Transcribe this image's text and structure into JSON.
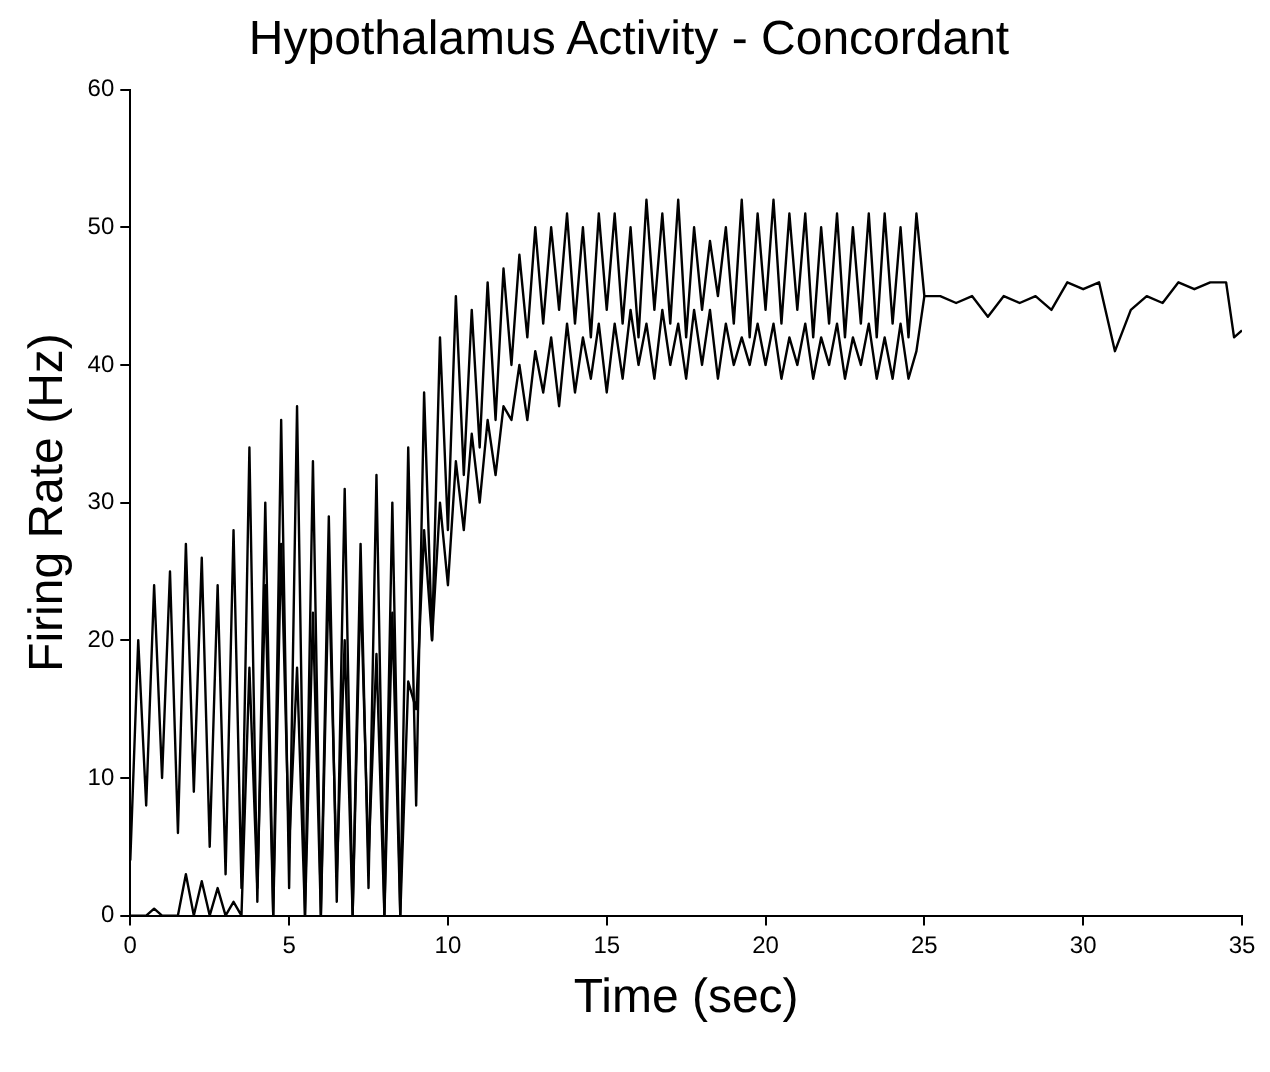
{
  "chart_data": {
    "type": "line",
    "title": "Hypothalamus Activity - Concordant",
    "xlabel": "Time (sec)",
    "ylabel": "Firing Rate (Hz)",
    "xlim": [
      0,
      35
    ],
    "xticks": [
      0,
      5,
      10,
      15,
      20,
      25,
      30,
      35
    ],
    "ylim": [
      0,
      60
    ],
    "yticks": [
      0,
      10,
      20,
      30,
      40,
      50,
      60
    ],
    "grid": false,
    "legend": false,
    "marker": "none",
    "line_style": "solid",
    "series": [
      {
        "color": "#000000",
        "x": [
          0,
          0.25,
          0.5,
          0.75,
          1,
          1.25,
          1.5,
          1.75,
          2,
          2.25,
          2.5,
          2.75,
          3,
          3.25,
          3.5,
          3.75,
          4,
          4.25,
          4.5,
          4.75,
          5,
          5.25,
          5.5,
          5.75,
          6,
          6.25,
          6.5,
          6.75,
          7,
          7.25,
          7.5,
          7.75,
          8,
          8.25,
          8.5,
          8.75,
          9,
          9.25,
          9.5,
          9.75,
          10,
          10.25,
          10.5,
          10.75,
          11,
          11.25,
          11.5,
          11.75,
          12,
          12.25,
          12.5,
          12.75,
          13,
          13.25,
          13.5,
          13.75,
          14,
          14.25,
          14.5,
          14.75,
          15,
          15.25,
          15.5,
          15.75,
          16,
          16.25,
          16.5,
          16.75,
          17,
          17.25,
          17.5,
          17.75,
          18,
          18.25,
          18.5,
          18.75,
          19,
          19.25,
          19.5,
          19.75,
          20,
          20.25,
          20.5,
          20.75,
          21,
          21.25,
          21.5,
          21.75,
          22,
          22.25,
          22.5,
          22.75,
          23,
          23.25,
          23.5,
          23.75,
          24,
          24.25,
          24.5,
          24.75,
          25,
          25.5,
          26,
          26.5,
          27,
          27.5,
          28,
          28.5,
          29,
          29.5,
          30,
          30.5,
          31,
          31.5,
          32,
          32.5,
          33,
          33.5,
          34,
          34.5,
          34.75,
          35
        ],
        "values": [
          4,
          20,
          8,
          24,
          10,
          25,
          6,
          27,
          9,
          26,
          5,
          24,
          3,
          28,
          2,
          34,
          1,
          30,
          0,
          36,
          2,
          37,
          0,
          33,
          0,
          29,
          1,
          31,
          0,
          27,
          2,
          32,
          0,
          30,
          0,
          34,
          8,
          38,
          20,
          42,
          28,
          45,
          32,
          44,
          34,
          46,
          36,
          47,
          40,
          48,
          42,
          50,
          43,
          50,
          44,
          51,
          43,
          50,
          42,
          51,
          44,
          51,
          43,
          50,
          42,
          52,
          44,
          51,
          43,
          52,
          42,
          50,
          44,
          49,
          45,
          50,
          43,
          52,
          42,
          51,
          44,
          52,
          43,
          51,
          44,
          51,
          42,
          50,
          43,
          51,
          42,
          50,
          43,
          51,
          42,
          51,
          43,
          50,
          42,
          51,
          45,
          45,
          44.5,
          45,
          43.5,
          45,
          44.5,
          45,
          44,
          46,
          45.5,
          46,
          41,
          44,
          45,
          44.5,
          46,
          45.5,
          46,
          46,
          42,
          42.5
        ]
      },
      {
        "color": "#000000",
        "x": [
          0,
          0.25,
          0.5,
          0.75,
          1,
          1.25,
          1.5,
          1.75,
          2,
          2.25,
          2.5,
          2.75,
          3,
          3.25,
          3.5,
          3.75,
          4,
          4.25,
          4.5,
          4.75,
          5,
          5.25,
          5.5,
          5.75,
          6,
          6.25,
          6.5,
          6.75,
          7,
          7.25,
          7.5,
          7.75,
          8,
          8.25,
          8.5,
          8.75,
          9,
          9.25,
          9.5,
          9.75,
          10,
          10.25,
          10.5,
          10.75,
          11,
          11.25,
          11.5,
          11.75,
          12,
          12.25,
          12.5,
          12.75,
          13,
          13.25,
          13.5,
          13.75,
          14,
          14.25,
          14.5,
          14.75,
          15,
          15.25,
          15.5,
          15.75,
          16,
          16.25,
          16.5,
          16.75,
          17,
          17.25,
          17.5,
          17.75,
          18,
          18.25,
          18.5,
          18.75,
          19,
          19.25,
          19.5,
          19.75,
          20,
          20.25,
          20.5,
          20.75,
          21,
          21.25,
          21.5,
          21.75,
          22,
          22.25,
          22.5,
          22.75,
          23,
          23.25,
          23.5,
          23.75,
          24,
          24.25,
          24.5,
          24.75,
          25
        ],
        "values": [
          0,
          0,
          0,
          0.5,
          0,
          0,
          0,
          3,
          0,
          2.5,
          0,
          2,
          0,
          1,
          0,
          18,
          2,
          24,
          0,
          27,
          5,
          18,
          0,
          22,
          0,
          25,
          3,
          20,
          0,
          24,
          4,
          19,
          0,
          22,
          0,
          17,
          15,
          28,
          20,
          30,
          24,
          33,
          28,
          35,
          30,
          36,
          32,
          37,
          36,
          40,
          36,
          41,
          38,
          42,
          37,
          43,
          38,
          42,
          39,
          43,
          38,
          43,
          39,
          44,
          40,
          43,
          39,
          44,
          40,
          43,
          39,
          44,
          40,
          44,
          39,
          43,
          40,
          42,
          40,
          43,
          40,
          43,
          39,
          42,
          40,
          43,
          39,
          42,
          40,
          43,
          39,
          42,
          40,
          43,
          39,
          42,
          39,
          43,
          39,
          41,
          45
        ]
      }
    ]
  }
}
